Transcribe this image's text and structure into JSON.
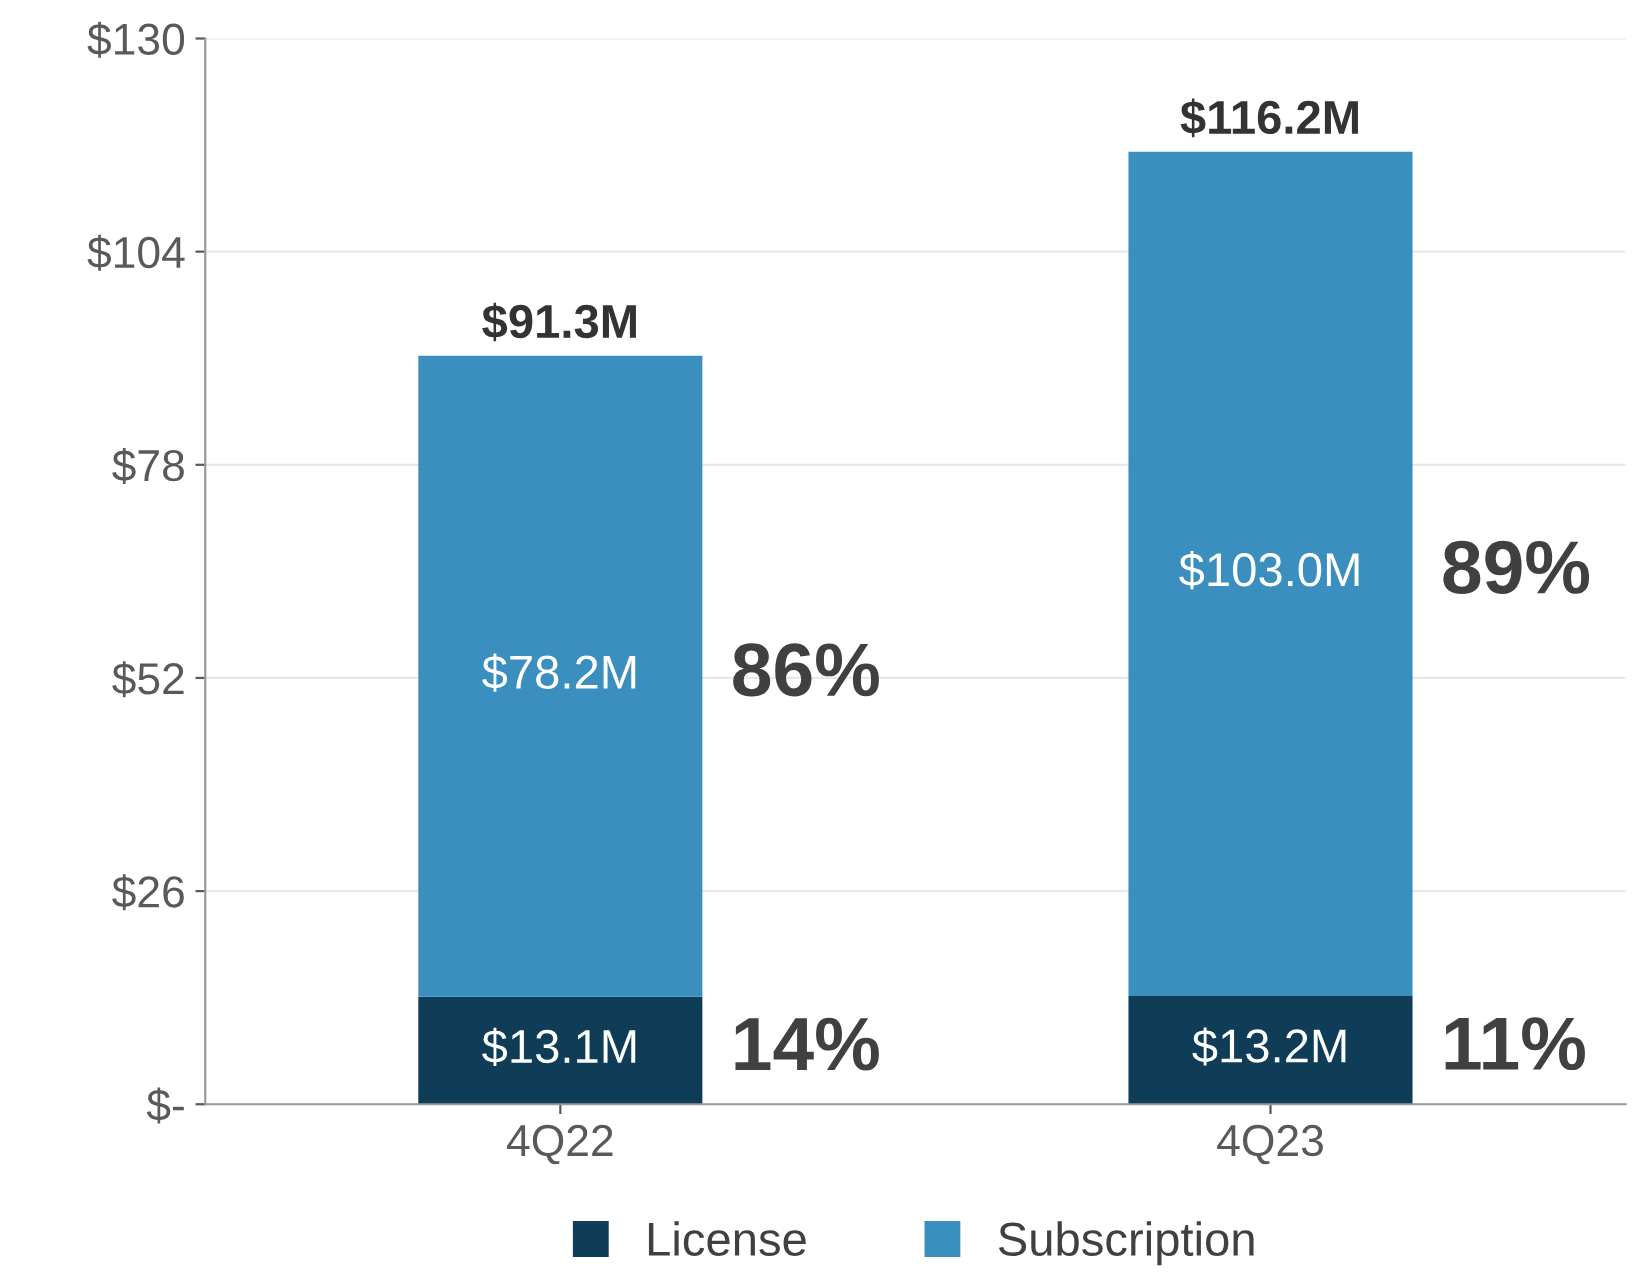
{
  "chart_data": {
    "type": "bar",
    "stacked": true,
    "categories": [
      "4Q22",
      "4Q23"
    ],
    "series": [
      {
        "name": "License",
        "color": "#0f3d57",
        "values": [
          13.1,
          13.2
        ],
        "value_labels": [
          "$13.1M",
          "$13.2M"
        ]
      },
      {
        "name": "Subscription",
        "color": "#3a8fbe",
        "values": [
          78.2,
          103.0
        ],
        "value_labels": [
          "$78.2M",
          "$103.0M"
        ]
      }
    ],
    "totals": [
      "$91.3M",
      "$116.2M"
    ],
    "annotations": [
      "14%",
      "86%",
      "11%",
      "89%"
    ],
    "ylim": [
      0,
      130
    ],
    "yticks": [
      {
        "value": 0,
        "label": "$-"
      },
      {
        "value": 26,
        "label": "$26"
      },
      {
        "value": 52,
        "label": "$52"
      },
      {
        "value": 78,
        "label": "$78"
      },
      {
        "value": 104,
        "label": "$104"
      },
      {
        "value": 130,
        "label": "$130"
      }
    ],
    "grid": "y",
    "legend": "bottom"
  }
}
